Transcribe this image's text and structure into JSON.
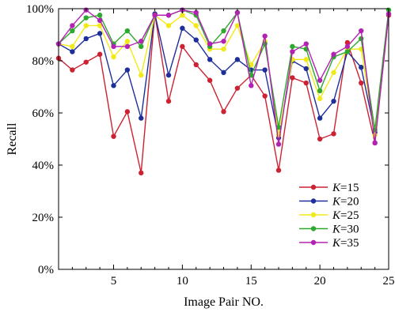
{
  "chart_data": {
    "type": "line",
    "title": "",
    "xlabel": "Image Pair NO.",
    "ylabel": "Recall",
    "xlim": [
      1,
      25
    ],
    "ylim": [
      0,
      100
    ],
    "x": [
      1,
      2,
      3,
      4,
      5,
      6,
      7,
      8,
      9,
      10,
      11,
      12,
      13,
      14,
      15,
      16,
      17,
      18,
      19,
      20,
      21,
      22,
      23,
      24,
      25
    ],
    "xticks": [
      5,
      10,
      15,
      20,
      25
    ],
    "yticks": [
      0,
      20,
      40,
      60,
      80,
      100
    ],
    "ytick_labels": [
      "0%",
      "20%",
      "40%",
      "60%",
      "80%",
      "100%"
    ],
    "grid": false,
    "legend_position": "lower-right",
    "series": [
      {
        "name": "K=15",
        "legend_var": "K",
        "legend_value": "=15",
        "color": "#cc2233",
        "values": [
          81,
          76.5,
          79.5,
          82.5,
          51,
          60.5,
          37,
          98,
          64.5,
          85.5,
          78.5,
          72.5,
          60.5,
          69.5,
          74.5,
          66.5,
          38,
          73.5,
          71.5,
          50,
          52,
          87,
          71.5,
          48.5,
          97.5
        ]
      },
      {
        "name": "K=20",
        "legend_var": "K",
        "legend_value": "=20",
        "color": "#1f2f9a",
        "values": [
          86.5,
          83.5,
          88.5,
          90.5,
          70.5,
          76.5,
          58,
          98,
          74.5,
          92.5,
          88,
          80.5,
          75.5,
          80.5,
          76.5,
          76.5,
          50.5,
          80,
          77,
          58,
          64.5,
          83.5,
          77.5,
          52.5,
          98
        ]
      },
      {
        "name": "K=25",
        "legend_var": "K",
        "legend_value": "=25",
        "color": "#f2ea18",
        "values": [
          86.5,
          85.5,
          93.5,
          93.5,
          81.5,
          87.5,
          74.5,
          97.5,
          93.5,
          97.5,
          93.5,
          84.5,
          84.5,
          93.5,
          78.5,
          87.5,
          51.5,
          80.5,
          80.5,
          65.5,
          75.5,
          84.5,
          84.5,
          51.5,
          98
        ]
      },
      {
        "name": "K=30",
        "legend_var": "K",
        "legend_value": "=30",
        "color": "#2ea82e",
        "values": [
          86.5,
          91.5,
          96.5,
          97.5,
          86.5,
          91.5,
          85.5,
          97.5,
          97.5,
          99.5,
          97.5,
          85.5,
          91.5,
          98.5,
          74.5,
          86.5,
          54.5,
          85.5,
          84.5,
          68.5,
          81.5,
          83.5,
          88.5,
          53.5,
          99.5
        ]
      },
      {
        "name": "K=35",
        "legend_var": "K",
        "legend_value": "=35",
        "color": "#b323b3",
        "values": [
          86.5,
          93.5,
          99.5,
          95.5,
          85.5,
          85.5,
          87.5,
          97.5,
          97.5,
          99.5,
          98.5,
          86.5,
          87.5,
          98.5,
          70.5,
          89.5,
          48,
          83.5,
          86.5,
          72.5,
          82.5,
          85.5,
          91.5,
          48.5,
          98
        ]
      }
    ]
  }
}
